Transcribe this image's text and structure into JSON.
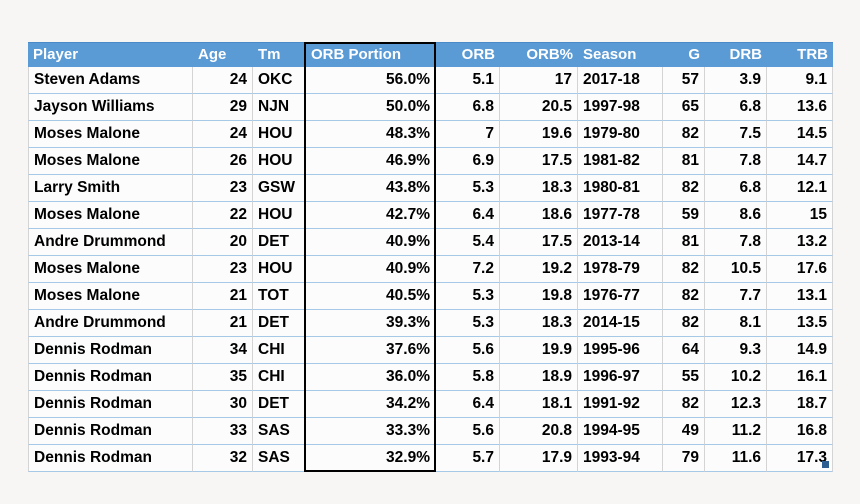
{
  "table": {
    "columns": [
      {
        "label": "Player"
      },
      {
        "label": "Age"
      },
      {
        "label": "Tm"
      },
      {
        "label": "ORB Portion"
      },
      {
        "label": "ORB"
      },
      {
        "label": "ORB%"
      },
      {
        "label": "Season"
      },
      {
        "label": "G"
      },
      {
        "label": "DRB"
      },
      {
        "label": "TRB"
      }
    ],
    "rows": [
      [
        "Steven Adams",
        "24",
        "OKC",
        "56.0%",
        "5.1",
        "17",
        "2017-18",
        "57",
        "3.9",
        "9.1"
      ],
      [
        "Jayson Williams",
        "29",
        "NJN",
        "50.0%",
        "6.8",
        "20.5",
        "1997-98",
        "65",
        "6.8",
        "13.6"
      ],
      [
        "Moses Malone",
        "24",
        "HOU",
        "48.3%",
        "7",
        "19.6",
        "1979-80",
        "82",
        "7.5",
        "14.5"
      ],
      [
        "Moses Malone",
        "26",
        "HOU",
        "46.9%",
        "6.9",
        "17.5",
        "1981-82",
        "81",
        "7.8",
        "14.7"
      ],
      [
        "Larry Smith",
        "23",
        "GSW",
        "43.8%",
        "5.3",
        "18.3",
        "1980-81",
        "82",
        "6.8",
        "12.1"
      ],
      [
        "Moses Malone",
        "22",
        "HOU",
        "42.7%",
        "6.4",
        "18.6",
        "1977-78",
        "59",
        "8.6",
        "15"
      ],
      [
        "Andre Drummond",
        "20",
        "DET",
        "40.9%",
        "5.4",
        "17.5",
        "2013-14",
        "81",
        "7.8",
        "13.2"
      ],
      [
        "Moses Malone",
        "23",
        "HOU",
        "40.9%",
        "7.2",
        "19.2",
        "1978-79",
        "82",
        "10.5",
        "17.6"
      ],
      [
        "Moses Malone",
        "21",
        "TOT",
        "40.5%",
        "5.3",
        "19.8",
        "1976-77",
        "82",
        "7.7",
        "13.1"
      ],
      [
        "Andre Drummond",
        "21",
        "DET",
        "39.3%",
        "5.3",
        "18.3",
        "2014-15",
        "82",
        "8.1",
        "13.5"
      ],
      [
        "Dennis Rodman",
        "34",
        "CHI",
        "37.6%",
        "5.6",
        "19.9",
        "1995-96",
        "64",
        "9.3",
        "14.9"
      ],
      [
        "Dennis Rodman",
        "35",
        "CHI",
        "36.0%",
        "5.8",
        "18.9",
        "1996-97",
        "55",
        "10.2",
        "16.1"
      ],
      [
        "Dennis Rodman",
        "30",
        "DET",
        "34.2%",
        "6.4",
        "18.1",
        "1991-92",
        "82",
        "12.3",
        "18.7"
      ],
      [
        "Dennis Rodman",
        "33",
        "SAS",
        "33.3%",
        "5.6",
        "20.8",
        "1994-95",
        "49",
        "11.2",
        "16.8"
      ],
      [
        "Dennis Rodman",
        "32",
        "SAS",
        "32.9%",
        "5.7",
        "17.9",
        "1993-94",
        "79",
        "11.6",
        "17.3"
      ]
    ],
    "selected_column": "ORB Portion"
  },
  "colors": {
    "header_bg": "#5b9bd5",
    "header_text": "#ffffff",
    "cell_bg": "#fcfcfc",
    "grid_horizontal": "#a6c9e8",
    "grid_vertical": "#d4d4d4",
    "selection_border": "#000000",
    "resize_handle": "#2e5e8f",
    "page_bg": "#f7f6f4"
  }
}
